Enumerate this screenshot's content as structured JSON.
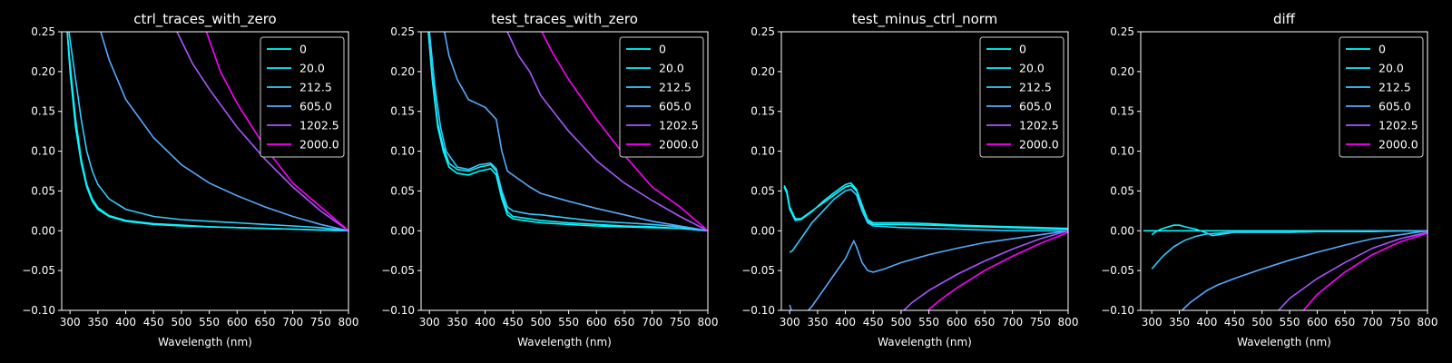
{
  "chart_data": [
    {
      "type": "line",
      "title": "ctrl_traces_with_zero",
      "xlabel": "Wavelength (nm)",
      "xlim": [
        285,
        800
      ],
      "ylim": [
        -0.1,
        0.25
      ],
      "x_ticks": [
        "300",
        "350",
        "400",
        "450",
        "500",
        "550",
        "600",
        "650",
        "700",
        "750",
        "800"
      ],
      "y_ticks": [
        "−0.10",
        "−0.05",
        "0.00",
        "0.05",
        "0.10",
        "0.15",
        "0.20",
        "0.25"
      ],
      "legend": "top-right",
      "series": [
        {
          "name": "0",
          "color": "#00ffff",
          "x": [
            295,
            300,
            310,
            320,
            330,
            340,
            350,
            370,
            400,
            450,
            500,
            550,
            600,
            650,
            700,
            750,
            800
          ],
          "y": [
            0.25,
            0.2,
            0.13,
            0.085,
            0.055,
            0.037,
            0.027,
            0.018,
            0.012,
            0.008,
            0.006,
            0.005,
            0.004,
            0.003,
            0.002,
            0.001,
            0.0
          ]
        },
        {
          "name": "20.0",
          "color": "#11eeff",
          "x": [
            295,
            300,
            310,
            320,
            330,
            340,
            350,
            370,
            400,
            450,
            500,
            550,
            600,
            650,
            700,
            750,
            800
          ],
          "y": [
            0.25,
            0.21,
            0.14,
            0.09,
            0.058,
            0.04,
            0.029,
            0.019,
            0.013,
            0.009,
            0.007,
            0.005,
            0.004,
            0.003,
            0.002,
            0.001,
            0.0
          ]
        },
        {
          "name": "212.5",
          "color": "#33ccff",
          "x": [
            298,
            310,
            320,
            330,
            340,
            350,
            370,
            400,
            450,
            500,
            550,
            600,
            650,
            700,
            750,
            800
          ],
          "y": [
            0.25,
            0.19,
            0.14,
            0.1,
            0.075,
            0.058,
            0.04,
            0.027,
            0.018,
            0.014,
            0.012,
            0.01,
            0.008,
            0.006,
            0.004,
            0.0
          ]
        },
        {
          "name": "605.0",
          "color": "#55aaff",
          "x": [
            355,
            370,
            400,
            450,
            500,
            550,
            600,
            650,
            700,
            750,
            800
          ],
          "y": [
            0.25,
            0.215,
            0.165,
            0.117,
            0.083,
            0.06,
            0.044,
            0.03,
            0.018,
            0.008,
            0.0
          ]
        },
        {
          "name": "1202.5",
          "color": "#aa55ff",
          "x": [
            492,
            520,
            550,
            600,
            650,
            700,
            750,
            800
          ],
          "y": [
            0.25,
            0.21,
            0.178,
            0.13,
            0.09,
            0.055,
            0.025,
            0.0
          ]
        },
        {
          "name": "2000.0",
          "color": "#ff00ff",
          "x": [
            545,
            570,
            600,
            650,
            700,
            750,
            800
          ],
          "y": [
            0.25,
            0.2,
            0.16,
            0.105,
            0.06,
            0.03,
            0.0
          ]
        }
      ]
    },
    {
      "type": "line",
      "title": "test_traces_with_zero",
      "xlabel": "Wavelength (nm)",
      "xlim": [
        285,
        800
      ],
      "ylim": [
        -0.1,
        0.25
      ],
      "x_ticks": [
        "300",
        "350",
        "400",
        "450",
        "500",
        "550",
        "600",
        "650",
        "700",
        "750",
        "800"
      ],
      "y_ticks": [
        "−0.10",
        "−0.05",
        "0.00",
        "0.05",
        "0.10",
        "0.15",
        "0.20",
        "0.25"
      ],
      "legend": "top-right",
      "series": [
        {
          "name": "0",
          "color": "#00ffff",
          "x": [
            298,
            305,
            315,
            325,
            335,
            350,
            370,
            390,
            410,
            420,
            430,
            440,
            450,
            480,
            500,
            550,
            600,
            650,
            700,
            750,
            800
          ],
          "y": [
            0.25,
            0.19,
            0.13,
            0.1,
            0.08,
            0.072,
            0.07,
            0.075,
            0.078,
            0.07,
            0.04,
            0.02,
            0.015,
            0.012,
            0.01,
            0.008,
            0.006,
            0.005,
            0.004,
            0.003,
            0.0
          ]
        },
        {
          "name": "20.0",
          "color": "#11eeff",
          "x": [
            298,
            305,
            315,
            325,
            335,
            350,
            370,
            390,
            410,
            420,
            430,
            440,
            450,
            480,
            500,
            550,
            600,
            650,
            700,
            750,
            800
          ],
          "y": [
            0.25,
            0.195,
            0.135,
            0.105,
            0.085,
            0.077,
            0.075,
            0.08,
            0.083,
            0.075,
            0.045,
            0.024,
            0.018,
            0.015,
            0.013,
            0.01,
            0.008,
            0.006,
            0.005,
            0.003,
            0.0
          ]
        },
        {
          "name": "212.5",
          "color": "#33ccff",
          "x": [
            300,
            310,
            320,
            330,
            340,
            350,
            370,
            390,
            410,
            420,
            430,
            440,
            450,
            480,
            500,
            550,
            600,
            650,
            700,
            750,
            800
          ],
          "y": [
            0.25,
            0.18,
            0.13,
            0.1,
            0.09,
            0.08,
            0.077,
            0.083,
            0.085,
            0.078,
            0.05,
            0.03,
            0.025,
            0.021,
            0.02,
            0.016,
            0.012,
            0.01,
            0.008,
            0.005,
            0.0
          ]
        },
        {
          "name": "605.0",
          "color": "#55aaff",
          "x": [
            327,
            335,
            350,
            370,
            400,
            420,
            430,
            440,
            450,
            480,
            500,
            550,
            600,
            650,
            700,
            750,
            800
          ],
          "y": [
            0.25,
            0.22,
            0.19,
            0.165,
            0.155,
            0.14,
            0.1,
            0.075,
            0.07,
            0.055,
            0.047,
            0.037,
            0.028,
            0.02,
            0.012,
            0.006,
            0.0
          ]
        },
        {
          "name": "1202.5",
          "color": "#aa55ff",
          "x": [
            440,
            460,
            480,
            500,
            550,
            600,
            650,
            700,
            750,
            800
          ],
          "y": [
            0.25,
            0.22,
            0.2,
            0.17,
            0.125,
            0.088,
            0.06,
            0.038,
            0.018,
            0.0
          ]
        },
        {
          "name": "2000.0",
          "color": "#ff00ff",
          "x": [
            502,
            520,
            550,
            600,
            650,
            700,
            750,
            800
          ],
          "y": [
            0.25,
            0.225,
            0.19,
            0.14,
            0.095,
            0.055,
            0.03,
            0.0
          ]
        }
      ]
    },
    {
      "type": "line",
      "title": "test_minus_ctrl_norm",
      "xlabel": "Wavelength (nm)",
      "xlim": [
        285,
        800
      ],
      "ylim": [
        -0.1,
        0.25
      ],
      "x_ticks": [
        "300",
        "350",
        "400",
        "450",
        "500",
        "550",
        "600",
        "650",
        "700",
        "750",
        "800"
      ],
      "y_ticks": [
        "−0.10",
        "−0.05",
        "0.00",
        "0.05",
        "0.10",
        "0.15",
        "0.20",
        "0.25"
      ],
      "legend": "top-right",
      "series": [
        {
          "name": "0",
          "color": "#00ffff",
          "x": [
            290,
            295,
            300,
            310,
            320,
            340,
            360,
            380,
            400,
            410,
            420,
            430,
            440,
            450,
            500,
            550,
            600,
            650,
            700,
            750,
            800
          ],
          "y": [
            0.057,
            0.05,
            0.03,
            0.015,
            0.015,
            0.025,
            0.035,
            0.045,
            0.055,
            0.057,
            0.05,
            0.03,
            0.012,
            0.008,
            0.008,
            0.007,
            0.006,
            0.005,
            0.004,
            0.003,
            0.002
          ]
        },
        {
          "name": "20.0",
          "color": "#11eeff",
          "x": [
            290,
            295,
            300,
            310,
            320,
            340,
            360,
            380,
            400,
            410,
            420,
            430,
            440,
            450,
            500,
            550,
            600,
            650,
            700,
            750,
            800
          ],
          "y": [
            0.055,
            0.047,
            0.027,
            0.013,
            0.014,
            0.024,
            0.037,
            0.048,
            0.058,
            0.06,
            0.052,
            0.032,
            0.014,
            0.01,
            0.01,
            0.009,
            0.007,
            0.006,
            0.005,
            0.004,
            0.003
          ]
        },
        {
          "name": "212.5",
          "color": "#33ccff",
          "x": [
            300,
            305,
            310,
            320,
            340,
            360,
            380,
            400,
            410,
            420,
            430,
            440,
            450,
            500,
            550,
            600,
            650,
            700,
            750,
            800
          ],
          "y": [
            -0.027,
            -0.025,
            -0.02,
            -0.01,
            0.01,
            0.025,
            0.04,
            0.05,
            0.052,
            0.045,
            0.025,
            0.01,
            0.006,
            0.004,
            0.003,
            0.002,
            0.001,
            0.0,
            0.0,
            0.0
          ]
        },
        {
          "name": "605.0",
          "color": "#55aaff",
          "x": [
            300,
            305,
            320,
            340,
            360,
            380,
            400,
            410,
            415,
            420,
            430,
            440,
            450,
            470,
            500,
            550,
            600,
            650,
            700,
            750,
            800
          ],
          "y": [
            -0.093,
            -0.105,
            -0.11,
            -0.095,
            -0.075,
            -0.055,
            -0.035,
            -0.02,
            -0.013,
            -0.02,
            -0.04,
            -0.05,
            -0.052,
            -0.048,
            -0.04,
            -0.03,
            -0.022,
            -0.015,
            -0.01,
            -0.005,
            0.0
          ]
        },
        {
          "name": "1202.5",
          "color": "#aa55ff",
          "x": [
            505,
            520,
            550,
            600,
            650,
            700,
            750,
            800
          ],
          "y": [
            -0.1,
            -0.09,
            -0.075,
            -0.055,
            -0.038,
            -0.023,
            -0.01,
            0.0
          ]
        },
        {
          "name": "2000.0",
          "color": "#ff00ff",
          "x": [
            548,
            570,
            600,
            650,
            700,
            750,
            800
          ],
          "y": [
            -0.1,
            -0.087,
            -0.072,
            -0.05,
            -0.032,
            -0.016,
            -0.002
          ]
        }
      ]
    },
    {
      "type": "line",
      "title": "diff",
      "xlabel": "Wavelength (nm)",
      "xlim": [
        280,
        800
      ],
      "ylim": [
        -0.1,
        0.25
      ],
      "x_ticks": [
        "300",
        "350",
        "400",
        "450",
        "500",
        "550",
        "600",
        "650",
        "700",
        "750",
        "800"
      ],
      "y_ticks": [
        "−0.10",
        "−0.05",
        "0.00",
        "0.05",
        "0.10",
        "0.15",
        "0.20",
        "0.25"
      ],
      "legend": "top-right",
      "series": [
        {
          "name": "0",
          "color": "#00ffff",
          "x": [
            285,
            300,
            350,
            400,
            450,
            500,
            550,
            600,
            650,
            700,
            750,
            800
          ],
          "y": [
            0.0,
            0.0,
            0.0,
            0.0,
            0.0,
            0.0,
            0.0,
            0.0,
            0.0,
            0.0,
            0.0,
            0.0
          ]
        },
        {
          "name": "20.0",
          "color": "#11eeff",
          "x": [
            300,
            310,
            320,
            340,
            350,
            360,
            380,
            400,
            410,
            420,
            450,
            500,
            550,
            600,
            650,
            700,
            750,
            800
          ],
          "y": [
            -0.005,
            0.0,
            0.003,
            0.007,
            0.007,
            0.005,
            0.002,
            -0.003,
            -0.006,
            -0.005,
            -0.002,
            -0.002,
            -0.002,
            -0.001,
            -0.001,
            -0.001,
            0.0,
            0.0
          ]
        },
        {
          "name": "212.5",
          "color": "#33ccff",
          "x": [
            300,
            310,
            320,
            340,
            360,
            380,
            400,
            420,
            440,
            460,
            500,
            550,
            600,
            650,
            700,
            750,
            800
          ],
          "y": [
            -0.048,
            -0.04,
            -0.032,
            -0.02,
            -0.012,
            -0.007,
            -0.004,
            -0.003,
            -0.002,
            -0.002,
            -0.002,
            -0.002,
            -0.001,
            -0.001,
            0.0,
            0.0,
            0.0
          ]
        },
        {
          "name": "605.0",
          "color": "#55aaff",
          "x": [
            355,
            370,
            400,
            420,
            450,
            500,
            550,
            600,
            650,
            700,
            750,
            800
          ],
          "y": [
            -0.1,
            -0.09,
            -0.075,
            -0.068,
            -0.06,
            -0.048,
            -0.037,
            -0.027,
            -0.018,
            -0.01,
            -0.005,
            0.0
          ]
        },
        {
          "name": "1202.5",
          "color": "#aa55ff",
          "x": [
            530,
            550,
            600,
            650,
            700,
            750,
            800
          ],
          "y": [
            -0.1,
            -0.085,
            -0.06,
            -0.04,
            -0.022,
            -0.01,
            -0.002
          ]
        },
        {
          "name": "2000.0",
          "color": "#ff00ff",
          "x": [
            575,
            600,
            650,
            700,
            750,
            800
          ],
          "y": [
            -0.1,
            -0.08,
            -0.052,
            -0.03,
            -0.014,
            -0.003
          ]
        }
      ]
    }
  ]
}
